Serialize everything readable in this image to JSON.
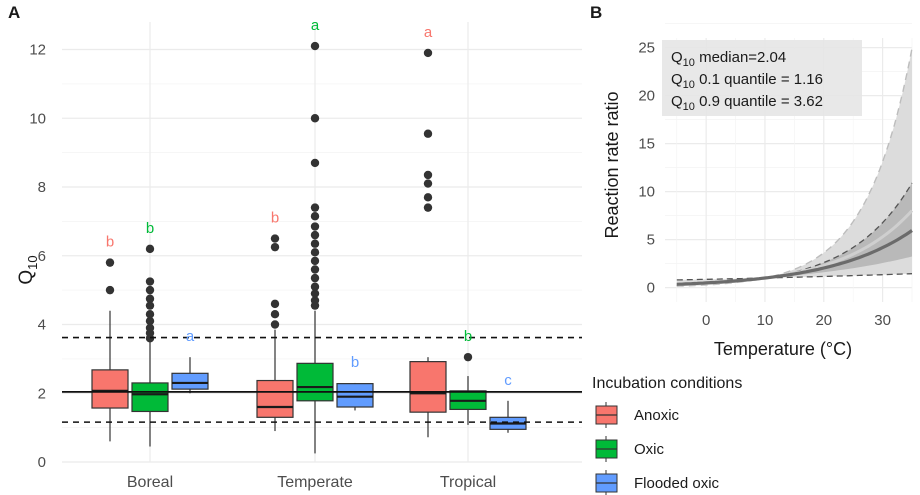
{
  "colors": {
    "anoxic": "#F8766D",
    "oxic": "#00BA38",
    "flooded": "#619CFF"
  },
  "chart_data": [
    {
      "panel": "A",
      "type": "box",
      "ylabel": "Q",
      "ylabel_sub": "10",
      "ylim": [
        0,
        12.8
      ],
      "yticks": [
        0,
        2,
        4,
        6,
        8,
        10,
        12
      ],
      "categories": [
        "Boreal",
        "Temperate",
        "Tropical"
      ],
      "reference_lines": {
        "median": 2.04,
        "q10": 1.16,
        "q90": 3.62
      },
      "groups": [
        {
          "biome": "Boreal",
          "condition": "anoxic",
          "whislo": 0.6,
          "q1": 1.57,
          "med": 2.07,
          "q3": 2.68,
          "whishi": 4.4,
          "outliers": [
            5.0,
            5.8
          ],
          "letter": "b"
        },
        {
          "biome": "Boreal",
          "condition": "oxic",
          "whislo": 0.45,
          "q1": 1.47,
          "med": 1.97,
          "q3": 2.3,
          "whishi": 3.5,
          "outliers": [
            3.6,
            3.75,
            3.9,
            4.1,
            4.3,
            4.55,
            4.75,
            5.0,
            5.25,
            6.2
          ],
          "letter": "b"
        },
        {
          "biome": "Boreal",
          "condition": "flooded",
          "whislo": 2.0,
          "q1": 2.12,
          "med": 2.3,
          "q3": 2.58,
          "whishi": 3.05,
          "outliers": [],
          "letter": "a"
        },
        {
          "biome": "Temperate",
          "condition": "anoxic",
          "whislo": 0.9,
          "q1": 1.3,
          "med": 1.6,
          "q3": 2.37,
          "whishi": 3.85,
          "outliers": [
            4.0,
            4.3,
            4.6,
            6.25,
            6.5
          ],
          "letter": "b"
        },
        {
          "biome": "Temperate",
          "condition": "oxic",
          "whislo": 0.25,
          "q1": 1.78,
          "med": 2.18,
          "q3": 2.87,
          "whishi": 4.4,
          "outliers": [
            4.55,
            4.7,
            4.9,
            5.1,
            5.35,
            5.6,
            5.85,
            6.1,
            6.35,
            6.6,
            6.85,
            7.15,
            7.4,
            8.7,
            10.0,
            12.1
          ],
          "letter": "a"
        },
        {
          "biome": "Temperate",
          "condition": "flooded",
          "whislo": 1.5,
          "q1": 1.6,
          "med": 1.9,
          "q3": 2.28,
          "whishi": 2.3,
          "outliers": [],
          "letter": "b"
        },
        {
          "biome": "Tropical",
          "condition": "anoxic",
          "whislo": 0.72,
          "q1": 1.45,
          "med": 2.0,
          "q3": 2.92,
          "whishi": 3.05,
          "outliers": [
            7.4,
            7.7,
            8.1,
            8.35,
            9.55,
            11.9
          ],
          "letter": "a"
        },
        {
          "biome": "Tropical",
          "condition": "oxic",
          "whislo": 1.08,
          "q1": 1.53,
          "med": 1.78,
          "q3": 2.07,
          "whishi": 2.5,
          "outliers": [
            3.05
          ],
          "letter": "b"
        },
        {
          "biome": "Tropical",
          "condition": "flooded",
          "whislo": 0.85,
          "q1": 0.95,
          "med": 1.12,
          "q3": 1.3,
          "whishi": 1.78,
          "outliers": [],
          "letter": "c"
        }
      ]
    },
    {
      "panel": "B",
      "type": "line",
      "xlabel": "Temperature (°C)",
      "ylabel": "Reaction rate ratio",
      "xlim": [
        -7,
        35
      ],
      "ylim": [
        -1.5,
        26
      ],
      "xticks": [
        0,
        10,
        20,
        30
      ],
      "yticks": [
        0,
        5,
        10,
        15,
        20,
        25
      ],
      "reference_temperature": 10,
      "series": [
        {
          "name": "Q10 median",
          "q10": 2.04
        },
        {
          "name": "Q10 0.1 quantile",
          "q10": 1.16
        },
        {
          "name": "Q10 0.9 quantile",
          "q10": 3.62
        }
      ],
      "annotation_lines": [
        {
          "label": "Q",
          "sub": "10",
          "rest": " median=2.04"
        },
        {
          "label": "Q",
          "sub": "10",
          "rest": " 0.1 quantile = 1.16"
        },
        {
          "label": "Q",
          "sub": "10",
          "rest": " 0.9 quantile = 3.62"
        }
      ]
    }
  ],
  "legend": {
    "title": "Incubation conditions",
    "items": [
      {
        "key": "anoxic",
        "label": "Anoxic"
      },
      {
        "key": "oxic",
        "label": "Oxic"
      },
      {
        "key": "flooded",
        "label": "Flooded oxic"
      }
    ]
  }
}
